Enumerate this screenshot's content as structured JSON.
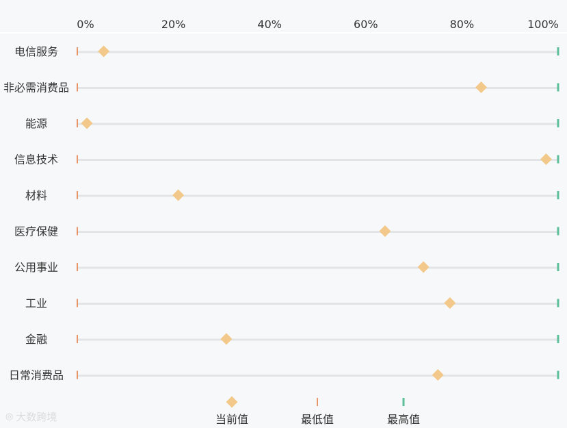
{
  "chart_data": {
    "type": "dot-range",
    "x_ticks": [
      "0%",
      "20%",
      "40%",
      "60%",
      "80%",
      "100%"
    ],
    "xlim": [
      0,
      100
    ],
    "categories": [
      "电信服务",
      "非必需消费品",
      "能源",
      "信息技术",
      "材料",
      "医疗保健",
      "公用事业",
      "工业",
      "金融",
      "日常消费品"
    ],
    "series": [
      {
        "name": "当前值",
        "marker": "diamond",
        "values": [
          5.5,
          84,
          2,
          97.5,
          21,
          64,
          72,
          77.5,
          31,
          75
        ]
      },
      {
        "name": "最低值",
        "marker": "tick",
        "values": [
          0,
          0,
          0,
          0,
          0,
          0,
          0,
          0,
          0,
          0
        ]
      },
      {
        "name": "最高值",
        "marker": "tick",
        "values": [
          100,
          100,
          100,
          100,
          100,
          100,
          100,
          100,
          100,
          100
        ]
      }
    ],
    "legend_position": "bottom-center",
    "colors": {
      "current": "#f2c98a",
      "min": "#e8956a",
      "max": "#5cbf9a",
      "track": "#e3e4e6",
      "axis_line": "#ffffff"
    }
  },
  "watermark": {
    "icon": "logo-icon",
    "text": "大数跨境"
  }
}
